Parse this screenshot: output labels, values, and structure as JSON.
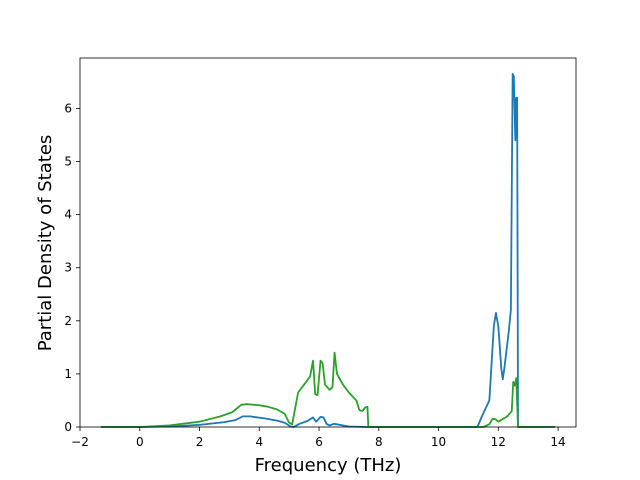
{
  "chart_data": {
    "type": "line",
    "xlabel": "Frequency (THz)",
    "ylabel": "Partial Density of States",
    "xlim": [
      -2,
      14.6
    ],
    "ylim": [
      0,
      6.95
    ],
    "xticks": [
      -2,
      0,
      2,
      4,
      6,
      8,
      10,
      12,
      14
    ],
    "yticks": [
      0,
      1,
      2,
      3,
      4,
      5,
      6
    ],
    "xtick_labels": [
      "−2",
      "0",
      "2",
      "4",
      "6",
      "8",
      "10",
      "12",
      "14"
    ],
    "ytick_labels": [
      "0",
      "1",
      "2",
      "3",
      "4",
      "5",
      "6"
    ],
    "grid": false,
    "series": [
      {
        "color": "#1f77b4",
        "points": [
          [
            -1.3,
            0
          ],
          [
            0,
            0
          ],
          [
            1,
            0.01
          ],
          [
            2,
            0.04
          ],
          [
            2.8,
            0.09
          ],
          [
            3.2,
            0.13
          ],
          [
            3.45,
            0.2
          ],
          [
            3.7,
            0.2
          ],
          [
            4.2,
            0.16
          ],
          [
            4.6,
            0.12
          ],
          [
            4.85,
            0.08
          ],
          [
            5.05,
            0.01
          ],
          [
            5.15,
            0.0
          ],
          [
            5.35,
            0.06
          ],
          [
            5.6,
            0.11
          ],
          [
            5.8,
            0.18
          ],
          [
            5.9,
            0.1
          ],
          [
            6.05,
            0.19
          ],
          [
            6.15,
            0.18
          ],
          [
            6.25,
            0.06
          ],
          [
            6.35,
            0.03
          ],
          [
            6.5,
            0.06
          ],
          [
            7.0,
            0.01
          ],
          [
            7.6,
            0.0
          ],
          [
            11.3,
            0.0
          ],
          [
            11.45,
            0.2
          ],
          [
            11.7,
            0.5
          ],
          [
            11.85,
            1.9
          ],
          [
            11.92,
            2.15
          ],
          [
            12.0,
            1.9
          ],
          [
            12.1,
            1.1
          ],
          [
            12.15,
            0.9
          ],
          [
            12.2,
            1.1
          ],
          [
            12.35,
            1.8
          ],
          [
            12.42,
            2.2
          ],
          [
            12.48,
            6.65
          ],
          [
            12.52,
            6.6
          ],
          [
            12.57,
            5.4
          ],
          [
            12.6,
            6.2
          ],
          [
            12.63,
            6.2
          ],
          [
            12.66,
            0.0
          ],
          [
            13.9,
            0.0
          ]
        ]
      },
      {
        "color": "#2ca02c",
        "points": [
          [
            -1.3,
            0
          ],
          [
            0,
            0
          ],
          [
            1,
            0.03
          ],
          [
            2,
            0.1
          ],
          [
            2.7,
            0.2
          ],
          [
            3.1,
            0.28
          ],
          [
            3.4,
            0.42
          ],
          [
            3.6,
            0.43
          ],
          [
            4.0,
            0.41
          ],
          [
            4.3,
            0.38
          ],
          [
            4.6,
            0.33
          ],
          [
            4.85,
            0.25
          ],
          [
            5.0,
            0.08
          ],
          [
            5.1,
            0.05
          ],
          [
            5.2,
            0.35
          ],
          [
            5.3,
            0.65
          ],
          [
            5.5,
            0.8
          ],
          [
            5.7,
            0.95
          ],
          [
            5.8,
            1.25
          ],
          [
            5.87,
            0.62
          ],
          [
            5.95,
            0.6
          ],
          [
            6.05,
            1.25
          ],
          [
            6.12,
            1.2
          ],
          [
            6.2,
            0.8
          ],
          [
            6.35,
            0.7
          ],
          [
            6.45,
            0.75
          ],
          [
            6.52,
            1.4
          ],
          [
            6.6,
            1.0
          ],
          [
            6.8,
            0.8
          ],
          [
            7.0,
            0.65
          ],
          [
            7.25,
            0.5
          ],
          [
            7.35,
            0.32
          ],
          [
            7.45,
            0.3
          ],
          [
            7.55,
            0.37
          ],
          [
            7.62,
            0.38
          ],
          [
            7.65,
            0.0
          ],
          [
            11.5,
            0.0
          ],
          [
            11.7,
            0.05
          ],
          [
            11.8,
            0.15
          ],
          [
            11.9,
            0.15
          ],
          [
            12.0,
            0.1
          ],
          [
            12.3,
            0.2
          ],
          [
            12.45,
            0.3
          ],
          [
            12.5,
            0.85
          ],
          [
            12.55,
            0.78
          ],
          [
            12.6,
            0.92
          ],
          [
            12.66,
            0.0
          ],
          [
            13.9,
            0.0
          ]
        ]
      }
    ]
  }
}
